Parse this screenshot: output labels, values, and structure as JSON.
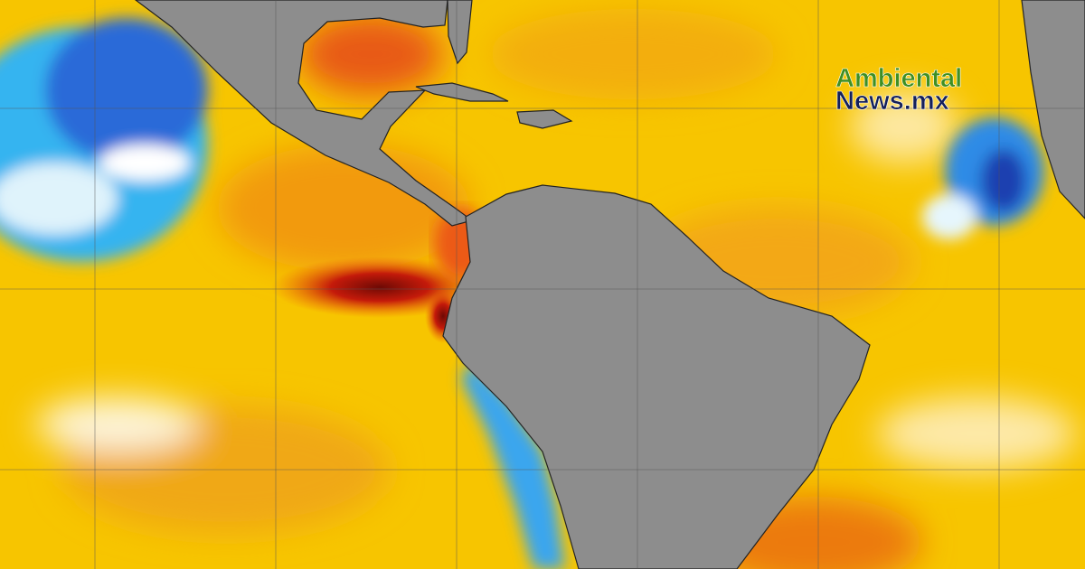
{
  "logo": {
    "line1": "Ambiental",
    "line2": "News.mx"
  }
}
